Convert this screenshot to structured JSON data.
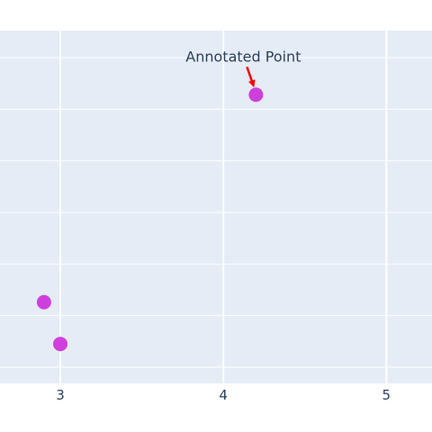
{
  "chart_data": {
    "type": "scatter",
    "x_ticks": [
      "3",
      "4",
      "5"
    ],
    "xlim": [
      2.63,
      5.28
    ],
    "ylim": [
      0.0,
      1.0
    ],
    "grid": true,
    "points": [
      {
        "x": 4.2,
        "y": 0.88
      },
      {
        "x": 2.9,
        "y": 0.21
      },
      {
        "x": 3.0,
        "y": 0.075
      }
    ],
    "marker_color": "#CE3FDE",
    "plot_bg": "#E5ECF6",
    "grid_color": "#FFFFFF",
    "annotation": {
      "text": "Annotated Point",
      "point_index": 0,
      "arrow_color": "#FF0000"
    }
  }
}
